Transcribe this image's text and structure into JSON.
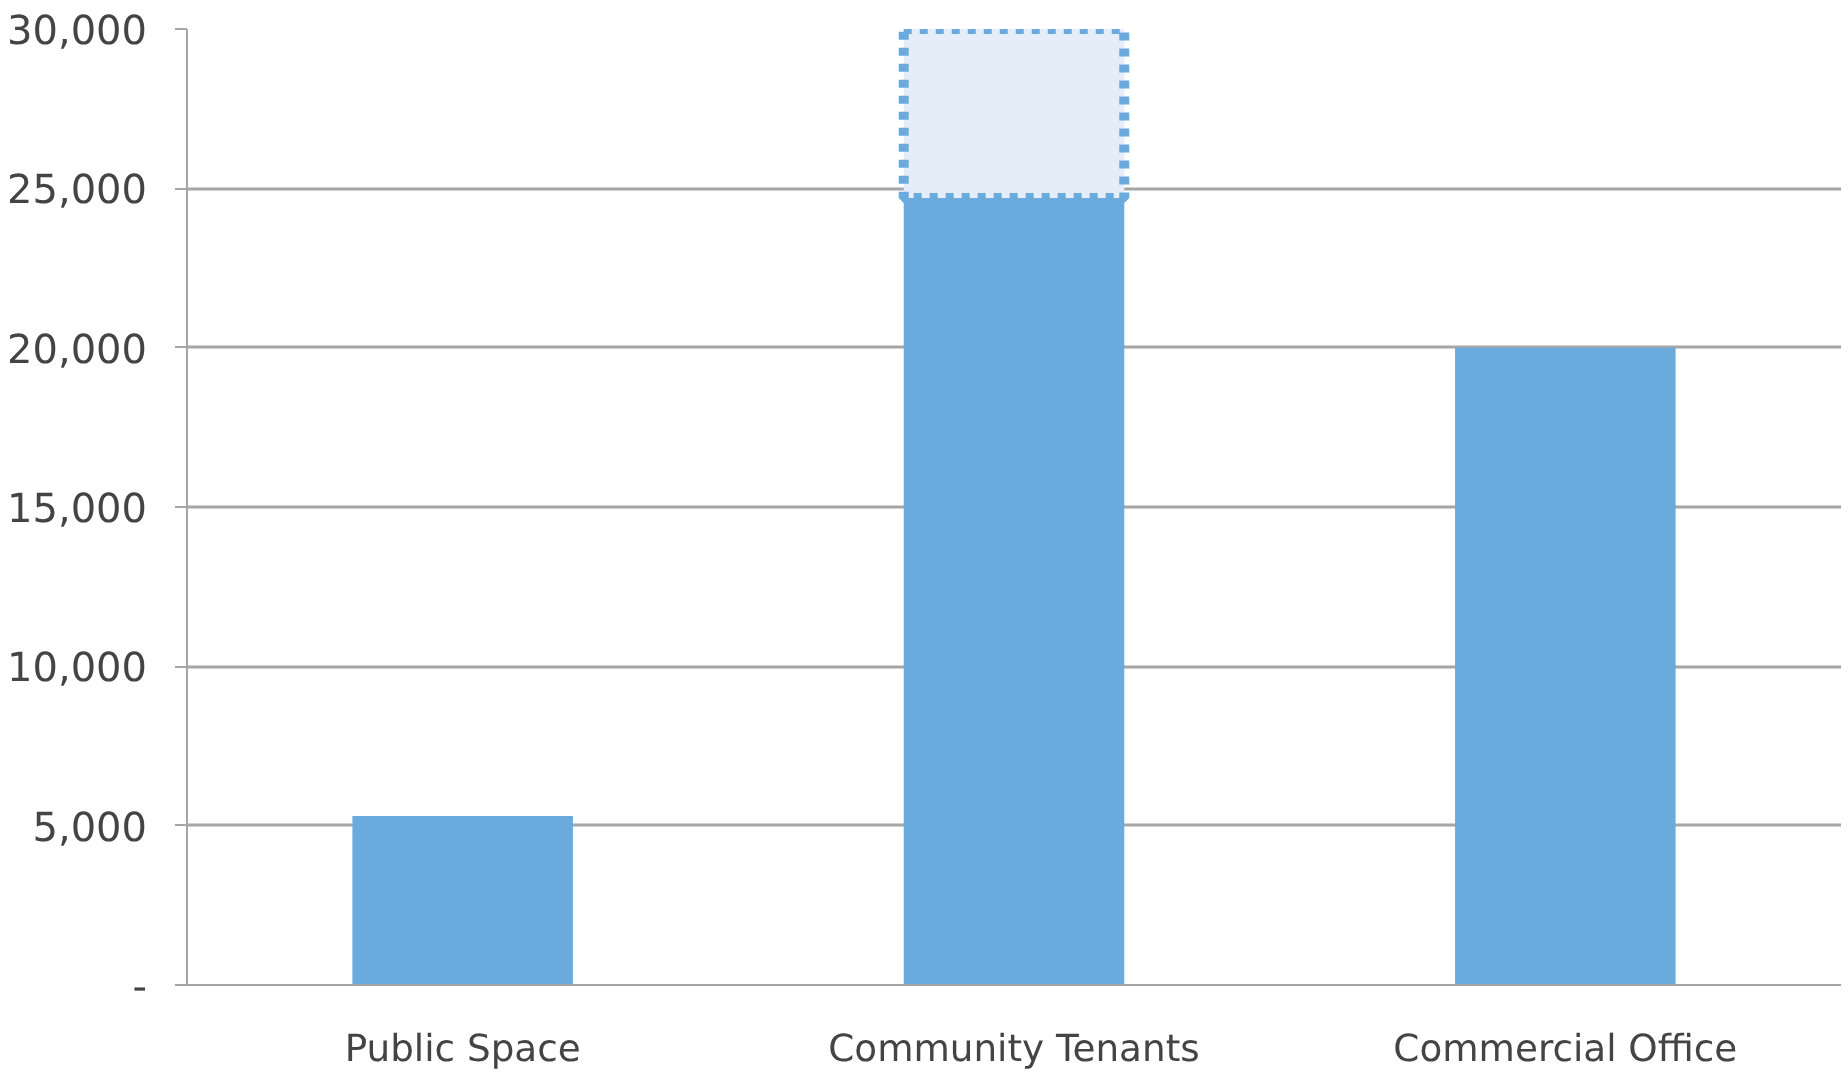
{
  "chart_data": {
    "type": "bar",
    "stacked": true,
    "categories": [
      "Public Space",
      "Community Tenants",
      "Commercial Office"
    ],
    "series": [
      {
        "color": "#6aaadc",
        "values": [
          5300,
          24700,
          20000
        ]
      },
      {
        "color": "#e4edf8",
        "line_style": "dotted",
        "values": [
          null,
          5300,
          null
        ]
      }
    ],
    "ylim": [
      0,
      30000
    ],
    "yticks": [
      {
        "value": 0,
        "label": "-"
      },
      {
        "value": 5000,
        "label": "5,000"
      },
      {
        "value": 10000,
        "label": "10,000"
      },
      {
        "value": 15000,
        "label": "15,000"
      },
      {
        "value": 20000,
        "label": "20,000"
      },
      {
        "value": 25000,
        "label": "25,000"
      },
      {
        "value": 30000,
        "label": "30,000"
      }
    ],
    "grid": "y"
  }
}
